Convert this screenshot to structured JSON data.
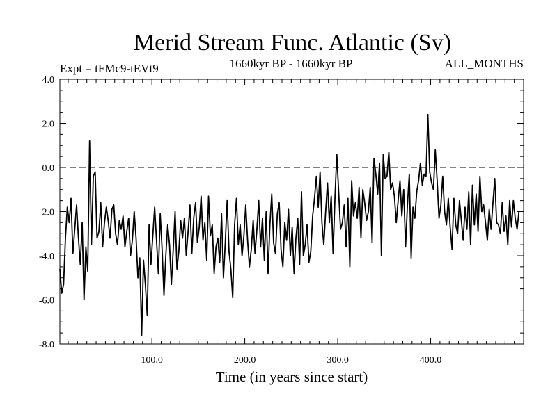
{
  "chart_data": {
    "type": "line",
    "title": "Merid Stream Func. Atlantic (Sv)",
    "subtitle_left": "Expt = tFMc9-tEVt9",
    "subtitle_center": "1660kyr BP - 1660kyr BP",
    "subtitle_right": "ALL_MONTHS",
    "xlabel": "Time (in years since start)",
    "ylabel": "",
    "xlim": [
      1,
      500
    ],
    "ylim": [
      -8.0,
      4.0
    ],
    "x_ticks": [
      100,
      200,
      300,
      400
    ],
    "x_tick_labels": [
      "100.0",
      "200.0",
      "300.0",
      "400.0"
    ],
    "y_ticks": [
      -8,
      -6,
      -4,
      -2,
      0,
      2,
      4
    ],
    "y_tick_labels": [
      "-8.0",
      "-6.0",
      "-4.0",
      "-2.0",
      "0.0",
      "2.0",
      "4.0"
    ],
    "reference_line": {
      "y": 0.0,
      "style": "dashed"
    },
    "grid": false,
    "line_color": "#000000",
    "series": [
      {
        "name": "Merid Stream Func. Atlantic",
        "x_start": 1,
        "x_step": 2,
        "values": [
          -4.6,
          -5.7,
          -5.3,
          -3.2,
          -1.8,
          -2.5,
          -1.4,
          -3.9,
          -2.8,
          -1.7,
          -3.2,
          -4.4,
          -2.5,
          -6.0,
          -3.6,
          -4.7,
          1.2,
          -3.5,
          -0.4,
          -0.2,
          -3.2,
          -2.9,
          -1.6,
          -3.6,
          -2.5,
          -1.8,
          -2.4,
          -3.2,
          -1.9,
          -1.7,
          -3.0,
          -3.5,
          -2.4,
          -2.8,
          -2.2,
          -3.6,
          -2.9,
          -2.3,
          -4.0,
          -3.3,
          -2.0,
          -3.2,
          -5.0,
          -4.1,
          -7.6,
          -4.2,
          -5.3,
          -6.7,
          -2.6,
          -4.4,
          -3.1,
          -1.8,
          -3.3,
          -4.8,
          -2.1,
          -3.7,
          -5.8,
          -4.0,
          -2.6,
          -3.5,
          -5.3,
          -3.7,
          -2.0,
          -4.6,
          -3.8,
          -2.4,
          -3.2,
          -2.3,
          -4.0,
          -2.9,
          -1.7,
          -3.9,
          -2.3,
          -1.6,
          -3.4,
          -2.7,
          -1.3,
          -3.3,
          -2.5,
          -4.2,
          -1.3,
          -3.1,
          -2.6,
          -4.8,
          -3.6,
          -3.2,
          -4.3,
          -2.1,
          -5.0,
          -3.4,
          -1.5,
          -3.8,
          -4.6,
          -5.9,
          -2.6,
          -1.4,
          -3.5,
          -2.6,
          -4.0,
          -3.1,
          -1.7,
          -3.3,
          -4.5,
          -3.7,
          -2.4,
          -3.9,
          -2.8,
          -1.5,
          -3.6,
          -2.3,
          -4.2,
          -2.0,
          -4.8,
          -2.6,
          -1.2,
          -3.4,
          -3.9,
          -2.1,
          -1.6,
          -3.7,
          -4.5,
          -2.5,
          -3.3,
          -1.9,
          -4.0,
          -2.7,
          -4.8,
          -3.2,
          -2.3,
          -4.4,
          -1.1,
          -4.0,
          -3.5,
          -2.6,
          -4.3,
          -3.8,
          -2.2,
          -1.4,
          -0.4,
          -1.8,
          -0.2,
          -2.5,
          -3.5,
          -2.0,
          -0.7,
          -2.5,
          -1.3,
          -3.9,
          -1.4,
          0.6,
          -1.1,
          -2.8,
          -2.5,
          -1.7,
          -3.6,
          -1.4,
          -4.5,
          -0.6,
          -2.2,
          -1.6,
          -2.3,
          -0.9,
          -3.2,
          -1.0,
          -1.6,
          -2.4,
          -2.0,
          -0.9,
          -3.4,
          0.4,
          -0.3,
          -1.2,
          0.2,
          -4.0,
          0.6,
          -0.5,
          -0.4,
          0.7,
          -1.0,
          -0.7,
          -1.3,
          -2.5,
          -1.5,
          -0.6,
          -2.2,
          -1.0,
          -3.6,
          -1.7,
          -0.3,
          -4.1,
          -1.8,
          -2.3,
          -1.1,
          -0.6,
          0.2,
          -0.8,
          -0.3,
          -0.4,
          2.4,
          -0.2,
          -0.7,
          -1.0,
          0.8,
          -0.6,
          -2.3,
          -1.7,
          -0.4,
          -2.0,
          -2.6,
          -1.4,
          -2.7,
          -3.7,
          -1.4,
          -2.6,
          -3.0,
          -1.5,
          -2.4,
          -3.3,
          -1.8,
          -2.8,
          -1.1,
          -3.5,
          -0.8,
          -2.6,
          -1.2,
          -2.9,
          -0.4,
          -2.0,
          -1.7,
          -2.5,
          -3.3,
          -1.9,
          -2.8,
          -1.6,
          -0.5,
          -2.5,
          -2.6,
          -3.0,
          -1.6,
          -2.9,
          -2.2,
          -3.5,
          -1.5,
          -2.7,
          -1.5,
          -2.3,
          -2.8,
          -2.0
        ]
      }
    ]
  }
}
